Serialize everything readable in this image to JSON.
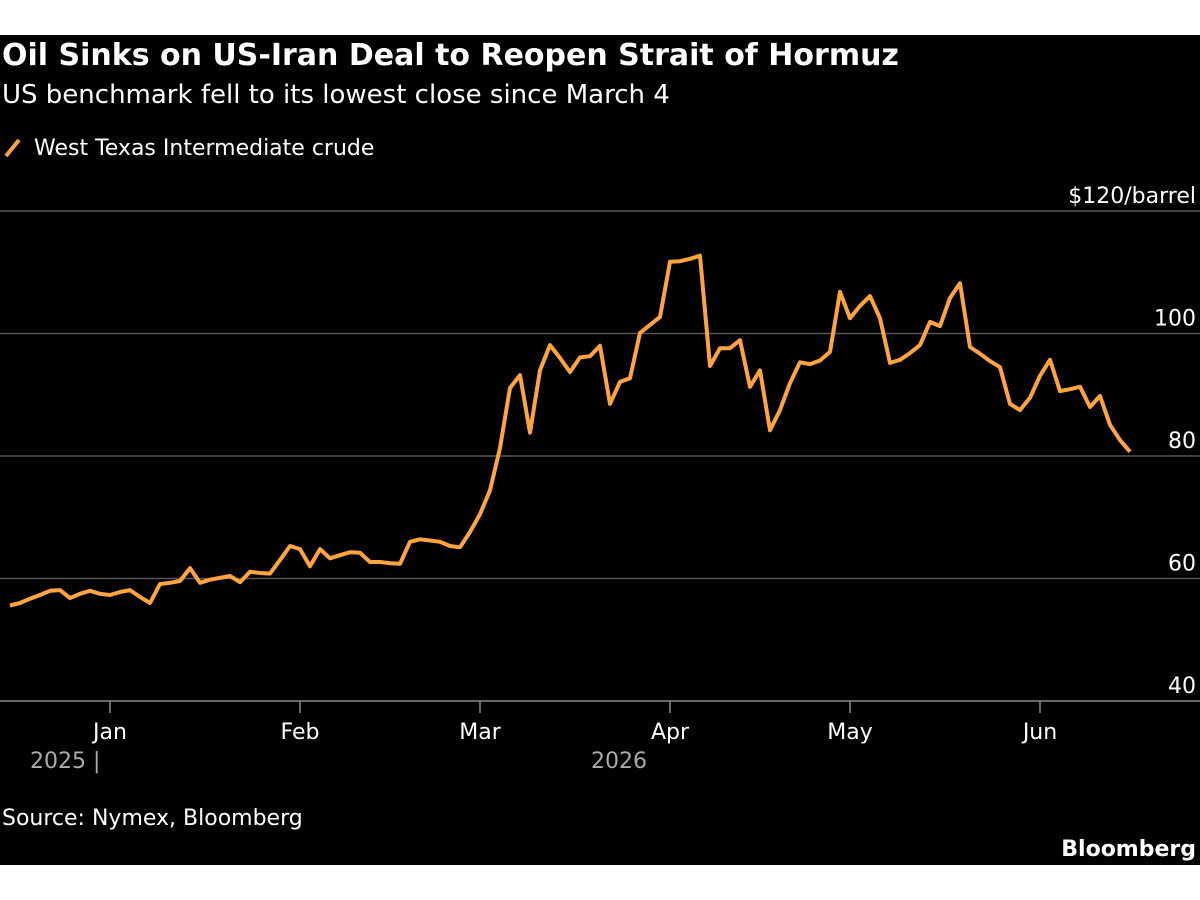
{
  "chart_data": {
    "type": "line",
    "title": "Oil Sinks on US-Iran Deal to Reopen Strait of Hormuz",
    "subtitle": "US benchmark fell to its lowest close since March 4",
    "source": "Source: Nymex, Bloomberg",
    "brand": "Bloomberg",
    "year_labels": [
      "2025 |",
      "2026"
    ],
    "categories": [
      null,
      null,
      null,
      null,
      null,
      null,
      null,
      null,
      null,
      null,
      "Jan",
      null,
      null,
      null,
      null,
      null,
      null,
      null,
      null,
      null,
      null,
      null,
      null,
      null,
      null,
      null,
      null,
      null,
      null,
      "Feb",
      null,
      null,
      null,
      null,
      null,
      null,
      null,
      null,
      null,
      null,
      null,
      null,
      null,
      null,
      null,
      null,
      null,
      "Mar",
      null,
      null,
      null,
      null,
      null,
      null,
      null,
      null,
      null,
      null,
      null,
      null,
      null,
      null,
      null,
      null,
      null,
      null,
      "Apr",
      null,
      null,
      null,
      null,
      null,
      null,
      null,
      null,
      null,
      null,
      null,
      null,
      null,
      null,
      null,
      null,
      null,
      "May",
      null,
      null,
      null,
      null,
      null,
      null,
      null,
      null,
      null,
      null,
      null,
      null,
      null,
      null,
      null,
      null,
      null,
      null,
      "Jun",
      null,
      null,
      null,
      null,
      null,
      null,
      null,
      null,
      null
    ],
    "series": [
      {
        "name": "West Texas Intermediate crude",
        "color": "#ffa43f",
        "values": [
          55.6,
          56.0,
          56.7,
          57.3,
          58.0,
          58.1,
          56.8,
          57.5,
          58.0,
          57.5,
          57.3,
          57.8,
          58.1,
          57.0,
          56.0,
          59.1,
          59.3,
          59.6,
          61.7,
          59.3,
          59.8,
          60.1,
          60.4,
          59.4,
          61.1,
          60.9,
          60.8,
          63.0,
          65.3,
          64.8,
          62.0,
          64.8,
          63.3,
          63.8,
          64.3,
          64.2,
          62.7,
          62.7,
          62.5,
          62.4,
          66.0,
          66.4,
          66.2,
          66.0,
          65.3,
          65.1,
          67.6,
          70.5,
          74.4,
          81.3,
          91.1,
          93.2,
          83.8,
          94.0,
          98.1,
          96.0,
          93.7,
          96.1,
          96.3,
          98.0,
          88.5,
          92.1,
          92.7,
          100.1,
          101.4,
          102.7,
          111.7,
          111.8,
          112.2,
          112.7,
          94.7,
          97.6,
          97.6,
          98.9,
          91.3,
          94.0,
          84.2,
          87.5,
          91.9,
          95.3,
          95.0,
          95.6,
          97.0,
          106.8,
          102.5,
          104.5,
          106.1,
          102.5,
          95.2,
          95.7,
          96.8,
          98.1,
          101.9,
          101.2,
          105.8,
          108.2,
          97.8,
          96.7,
          95.5,
          94.5,
          88.5,
          87.5,
          89.5,
          93.1,
          95.7,
          90.6,
          90.9,
          91.3,
          88.0,
          89.8,
          85.1,
          82.6,
          80.7
        ]
      }
    ],
    "ylim": [
      40,
      120
    ],
    "yticks": [
      40,
      60,
      80,
      100,
      {
        "value": 120,
        "label": "$120/barrel"
      }
    ],
    "grid": true
  }
}
